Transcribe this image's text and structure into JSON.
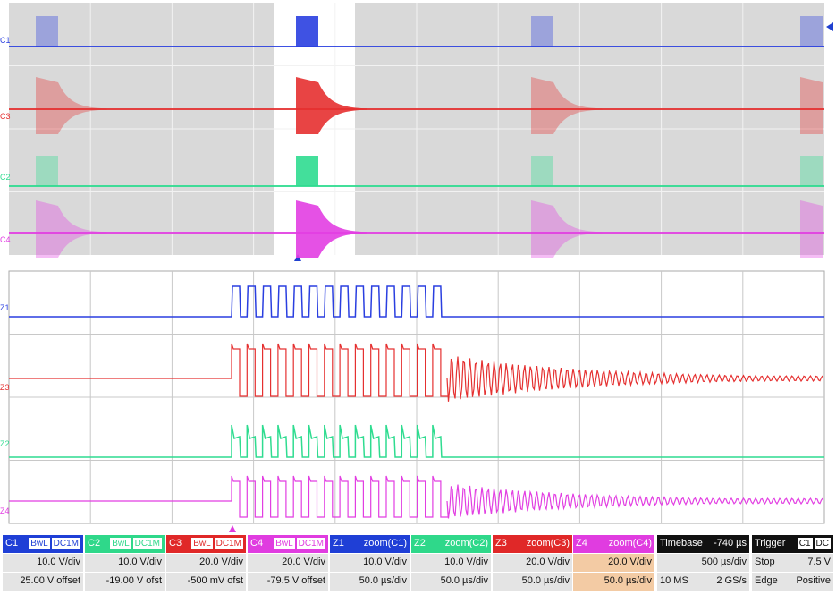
{
  "traces": [
    {
      "label": "C1",
      "color": "#2a3fe0"
    },
    {
      "label": "C3",
      "color": "#e53030"
    },
    {
      "label": "C2",
      "color": "#2fdc90"
    },
    {
      "label": "C4",
      "color": "#e23ee2"
    },
    {
      "label": "Z1",
      "color": "#2a3fe0"
    },
    {
      "label": "Z3",
      "color": "#e53030"
    },
    {
      "label": "Z2",
      "color": "#2fdc90"
    },
    {
      "label": "Z4",
      "color": "#e23ee2"
    }
  ],
  "channels": [
    {
      "label": "C1",
      "color": "#1f3fd6",
      "tags": [
        "BwL",
        "DC1M"
      ],
      "scale": "10.0 V/div",
      "offset": "25.00 V offset"
    },
    {
      "label": "C2",
      "color": "#2fd88a",
      "tags": [
        "BwL",
        "DC1M"
      ],
      "scale": "10.0 V/div",
      "offset": "-19.00 V ofst"
    },
    {
      "label": "C3",
      "color": "#e02828",
      "tags": [
        "BwL",
        "DC1M"
      ],
      "scale": "20.0 V/div",
      "offset": "-500 mV ofst"
    },
    {
      "label": "C4",
      "color": "#e03ce0",
      "tags": [
        "BwL",
        "DC1M"
      ],
      "scale": "20.0 V/div",
      "offset": "-79.5 V offset"
    }
  ],
  "zooms": [
    {
      "label": "Z1",
      "color": "#1f3fd6",
      "source": "zoom(C1)",
      "scale": "10.0 V/div",
      "timebase": "50.0 µs/div"
    },
    {
      "label": "Z2",
      "color": "#2fd88a",
      "source": "zoom(C2)",
      "scale": "10.0 V/div",
      "timebase": "50.0 µs/div"
    },
    {
      "label": "Z3",
      "color": "#e02828",
      "source": "zoom(C3)",
      "scale": "20.0 V/div",
      "timebase": "50.0 µs/div"
    },
    {
      "label": "Z4",
      "color": "#e03ce0",
      "source": "zoom(C4)",
      "scale": "20.0 V/div",
      "timebase": "50.0 µs/div"
    }
  ],
  "timebase": {
    "label": "Timebase",
    "delay": "-740 µs",
    "scale": "500 µs/div",
    "samples": "10 MS",
    "rate": "2 GS/s"
  },
  "trigger": {
    "label": "Trigger",
    "tags": [
      "C1",
      "DC"
    ],
    "mode": "Stop",
    "level": "7.5 V",
    "type": "Edge",
    "slope": "Positive"
  }
}
